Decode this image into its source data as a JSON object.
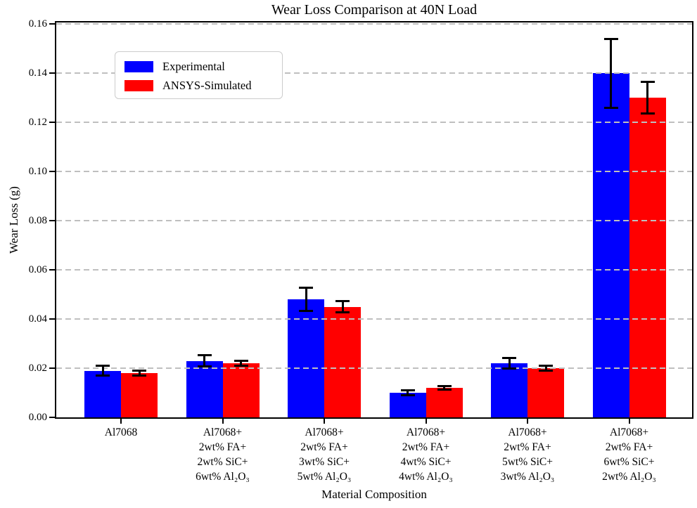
{
  "chart_data": {
    "type": "bar",
    "title": "Wear Loss Comparison at 40N Load",
    "xlabel": "Material Composition",
    "ylabel": "Wear Loss (g)",
    "ylim": [
      0,
      0.1617
    ],
    "yticks": [
      0,
      0.02,
      0.04,
      0.06,
      0.08,
      0.1,
      0.12,
      0.14,
      0.16
    ],
    "ytick_labels": [
      "0.00",
      "0.02",
      "0.04",
      "0.06",
      "0.08",
      "0.10",
      "0.12",
      "0.14",
      "0.16"
    ],
    "grid": {
      "axis": "y",
      "style": "dashed",
      "color": "#bfbfbf",
      "above_bars": true
    },
    "legend": {
      "position": "upper left",
      "items": [
        {
          "label": "Experimental",
          "color": "#0000ff"
        },
        {
          "label": "ANSYS-Simulated",
          "color": "#ff0000"
        }
      ]
    },
    "categories": [
      [
        "Al7068"
      ],
      [
        "Al7068+",
        "2wt% FA+",
        "2wt% SiC+",
        "6wt% Al₂O₃"
      ],
      [
        "Al7068+",
        "2wt% FA+",
        "3wt% SiC+",
        "5wt% Al₂O₃"
      ],
      [
        "Al7068+",
        "2wt% FA+",
        "4wt% SiC+",
        "4wt% Al₂O₃"
      ],
      [
        "Al7068+",
        "2wt% FA+",
        "5wt% SiC+",
        "3wt% Al₂O₃"
      ],
      [
        "Al7068+",
        "2wt% FA+",
        "6wt% SiC+",
        "2wt% Al₂O₃"
      ]
    ],
    "series": [
      {
        "name": "Experimental",
        "color": "#0000ff",
        "values": [
          0.019,
          0.023,
          0.048,
          0.01,
          0.022,
          0.14
        ],
        "errors": [
          0.0019,
          0.0023,
          0.0048,
          0.001,
          0.0022,
          0.014
        ]
      },
      {
        "name": "ANSYS-Simulated",
        "color": "#ff0000",
        "values": [
          0.018,
          0.022,
          0.045,
          0.012,
          0.02,
          0.13
        ],
        "errors": [
          0.0009,
          0.0011,
          0.0023,
          0.0006,
          0.001,
          0.0065
        ]
      }
    ]
  }
}
